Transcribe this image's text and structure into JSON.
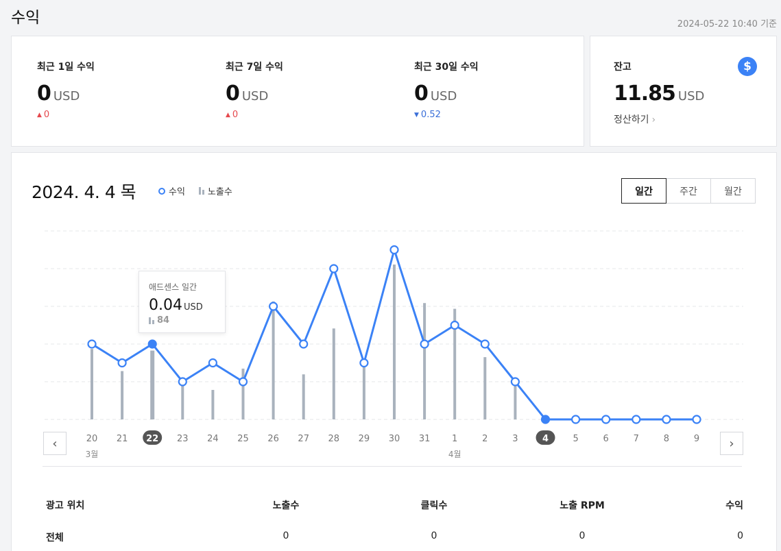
{
  "header": {
    "title": "수익",
    "timestamp": "2024-05-22 10:40 기준"
  },
  "summary": [
    {
      "label": "최근 1일 수익",
      "value": "0",
      "unit": "USD",
      "change": "0",
      "direction": "up"
    },
    {
      "label": "최근 7일 수익",
      "value": "0",
      "unit": "USD",
      "change": "0",
      "direction": "up"
    },
    {
      "label": "최근 30일 수익",
      "value": "0",
      "unit": "USD",
      "change": "0.52",
      "direction": "down"
    }
  ],
  "balance": {
    "label": "잔고",
    "value": "11.85",
    "unit": "USD",
    "settle_label": "정산하기",
    "icon": "dollar-icon"
  },
  "chart_header": {
    "date": "2024. 4. 4 목",
    "legend_revenue": "수익",
    "legend_impressions": "노출수",
    "periods": [
      "일간",
      "주간",
      "월간"
    ],
    "active_period": "일간"
  },
  "tooltip": {
    "title": "애드센스 일간",
    "value": "0.04",
    "unit": "USD",
    "impressions": "84"
  },
  "chart_data": {
    "type": "line+bar",
    "categories": [
      "20",
      "21",
      "22",
      "23",
      "24",
      "25",
      "26",
      "27",
      "28",
      "29",
      "30",
      "31",
      "1",
      "2",
      "3",
      "4",
      "5",
      "6",
      "7",
      "8",
      "9"
    ],
    "month_labels": [
      {
        "index": 0,
        "label": "3월"
      },
      {
        "index": 12,
        "label": "4월"
      }
    ],
    "highlighted": [
      2,
      15
    ],
    "series": [
      {
        "name": "수익",
        "kind": "line",
        "color": "#3b82f6",
        "values": [
          0.04,
          0.03,
          0.04,
          0.02,
          0.03,
          0.02,
          0.06,
          0.04,
          0.08,
          0.03,
          0.09,
          0.04,
          0.05,
          0.04,
          0.02,
          0,
          0,
          0,
          0,
          0,
          0
        ]
      },
      {
        "name": "노출수",
        "kind": "bar",
        "color": "#a9b2bd",
        "values": [
          86,
          59,
          84,
          44,
          36,
          62,
          144,
          55,
          111,
          66,
          189,
          142,
          135,
          76,
          44,
          0,
          0,
          0,
          0,
          0,
          0
        ]
      }
    ],
    "ylim": [
      0,
      0.1
    ],
    "y2lim": [
      0,
      230
    ],
    "grid": true
  },
  "table": {
    "headers": [
      "광고 위치",
      "노출수",
      "클릭수",
      "노출 RPM",
      "수익"
    ],
    "rows": [
      [
        "전체",
        "0",
        "0",
        "0",
        "0"
      ]
    ]
  }
}
